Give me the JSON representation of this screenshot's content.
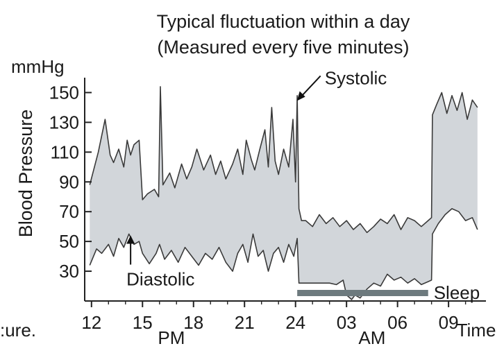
{
  "chart_data": {
    "type": "area",
    "title": "Typical fluctuation within a day",
    "subtitle": "(Measured every five minutes)",
    "ylabel": "Blood Pressure",
    "yunit": "mmHg",
    "xlabel": "Time",
    "yticks": [
      30,
      50,
      70,
      90,
      110,
      130,
      150
    ],
    "ylim": [
      10,
      160
    ],
    "xticks": [
      "12",
      "15",
      "18",
      "21",
      "24",
      "03",
      "06",
      "09"
    ],
    "xtick_hours": [
      12,
      15,
      18,
      21,
      24,
      27,
      30,
      33
    ],
    "xlim": [
      11.6,
      35.2
    ],
    "period_labels": [
      {
        "text": "PM",
        "hour": 16.7
      },
      {
        "text": "AM",
        "hour": 28.5
      }
    ],
    "cut_text": ":ure.",
    "annotations": [
      {
        "text": "Systolic",
        "hour": 24.0,
        "value": 150
      },
      {
        "text": "Diastolic",
        "hour": 14.3,
        "value": 54
      }
    ],
    "sleep": {
      "label": "Sleep",
      "start_hour": 24.1,
      "end_hour": 31.8
    },
    "band_color": "#d2d6da",
    "line_color": "#3a3a3a",
    "sleep_bar_color": "#6d7a7e",
    "series": [
      {
        "name": "Systolic",
        "x": [
          11.9,
          12.4,
          12.8,
          13.1,
          13.3,
          13.6,
          13.9,
          14.1,
          14.3,
          14.5,
          14.8,
          15.0,
          15.3,
          15.7,
          15.95,
          16.05,
          16.2,
          16.6,
          16.9,
          17.3,
          17.6,
          17.9,
          18.2,
          18.6,
          19.0,
          19.3,
          19.6,
          19.9,
          20.3,
          20.6,
          20.9,
          21.1,
          21.4,
          21.6,
          21.9,
          22.2,
          22.4,
          22.6,
          22.8,
          23.0,
          23.3,
          23.6,
          23.85,
          24.0,
          24.1,
          24.2,
          24.35,
          24.6,
          25.0,
          25.4,
          25.8,
          26.2,
          26.6,
          27.0,
          27.4,
          27.8,
          28.2,
          28.6,
          29.0,
          29.4,
          29.8,
          30.2,
          30.6,
          31.0,
          31.4,
          31.8,
          32.0,
          32.05,
          32.3,
          32.6,
          32.9,
          33.2,
          33.5,
          33.8,
          34.1,
          34.4,
          34.7
        ],
        "values": [
          88,
          110,
          132,
          108,
          103,
          112,
          100,
          118,
          108,
          115,
          118,
          78,
          82,
          85,
          80,
          154,
          88,
          96,
          86,
          102,
          92,
          100,
          112,
          98,
          108,
          95,
          104,
          92,
          102,
          112,
          95,
          118,
          105,
          98,
          112,
          125,
          100,
          140,
          104,
          95,
          112,
          100,
          132,
          90,
          148,
          72,
          64,
          64,
          60,
          68,
          62,
          66,
          60,
          64,
          58,
          62,
          56,
          60,
          65,
          62,
          68,
          58,
          66,
          64,
          60,
          64,
          66,
          135,
          142,
          150,
          136,
          148,
          138,
          150,
          132,
          145,
          140
        ]
      },
      {
        "name": "Diastolic",
        "x": [
          11.9,
          12.3,
          12.6,
          13.0,
          13.3,
          13.6,
          13.9,
          14.2,
          14.5,
          14.8,
          15.0,
          15.4,
          15.8,
          16.0,
          16.3,
          16.7,
          17.1,
          17.5,
          17.9,
          18.3,
          18.7,
          19.1,
          19.5,
          19.9,
          20.3,
          20.6,
          20.9,
          21.2,
          21.5,
          21.8,
          22.1,
          22.4,
          22.7,
          23.0,
          23.3,
          23.6,
          23.9,
          24.1,
          24.2,
          25.0,
          26.0,
          26.4,
          26.8,
          27.0,
          27.3,
          27.5,
          27.8,
          28.2,
          28.6,
          29.0,
          29.4,
          29.8,
          30.2,
          30.6,
          31.0,
          31.4,
          31.8,
          32.0,
          32.05,
          32.4,
          32.8,
          33.2,
          33.6,
          34.0,
          34.4,
          34.7
        ],
        "values": [
          34,
          45,
          42,
          48,
          40,
          52,
          46,
          55,
          48,
          50,
          42,
          35,
          42,
          48,
          38,
          44,
          36,
          46,
          40,
          34,
          42,
          38,
          46,
          36,
          30,
          42,
          48,
          36,
          55,
          40,
          44,
          30,
          42,
          46,
          36,
          48,
          40,
          52,
          22,
          22,
          22,
          21,
          24,
          14,
          11,
          14,
          12,
          18,
          22,
          20,
          28,
          24,
          26,
          22,
          25,
          21,
          23,
          24,
          55,
          62,
          68,
          72,
          70,
          64,
          66,
          58
        ]
      }
    ]
  }
}
